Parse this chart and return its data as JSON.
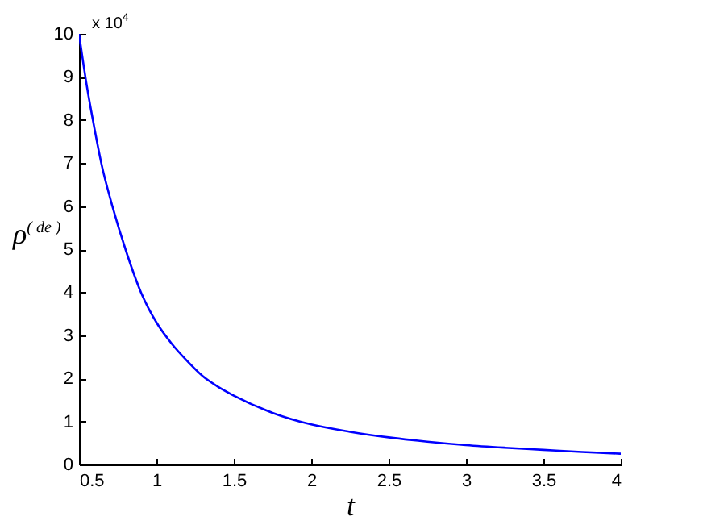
{
  "chart_data": {
    "type": "line",
    "xlabel": "t",
    "ylabel": "ρ$^{( de )}$",
    "annotations": [
      "x 10$^{4}$"
    ],
    "x": [
      0.5,
      0.55,
      0.6,
      0.65,
      0.7,
      0.8,
      0.9,
      1,
      1.1,
      1.2,
      1.3,
      1.4,
      1.5,
      1.75,
      2,
      2.25,
      2.5,
      2.75,
      3,
      3.25,
      3.5,
      3.75,
      4
    ],
    "series": [
      {
        "color": "#0000ff",
        "values": [
          10,
          8.8,
          7.8,
          6.9,
          6.2,
          5,
          4,
          3.3,
          2.8,
          2.4,
          2.05,
          1.8,
          1.6,
          1.2,
          0.93,
          0.76,
          0.63,
          0.53,
          0.45,
          0.39,
          0.34,
          0.29,
          0.25
        ]
      }
    ],
    "xlim": [
      0.5,
      4
    ],
    "xticks": [
      0.5,
      1,
      1.5,
      2,
      2.5,
      3,
      3.5,
      4
    ],
    "ylim": [
      0,
      10
    ],
    "yticks": [
      0,
      1,
      2,
      3,
      4,
      5,
      6,
      7,
      8,
      9,
      10
    ],
    "grid": false,
    "marker": "none",
    "line_style": "solid"
  }
}
